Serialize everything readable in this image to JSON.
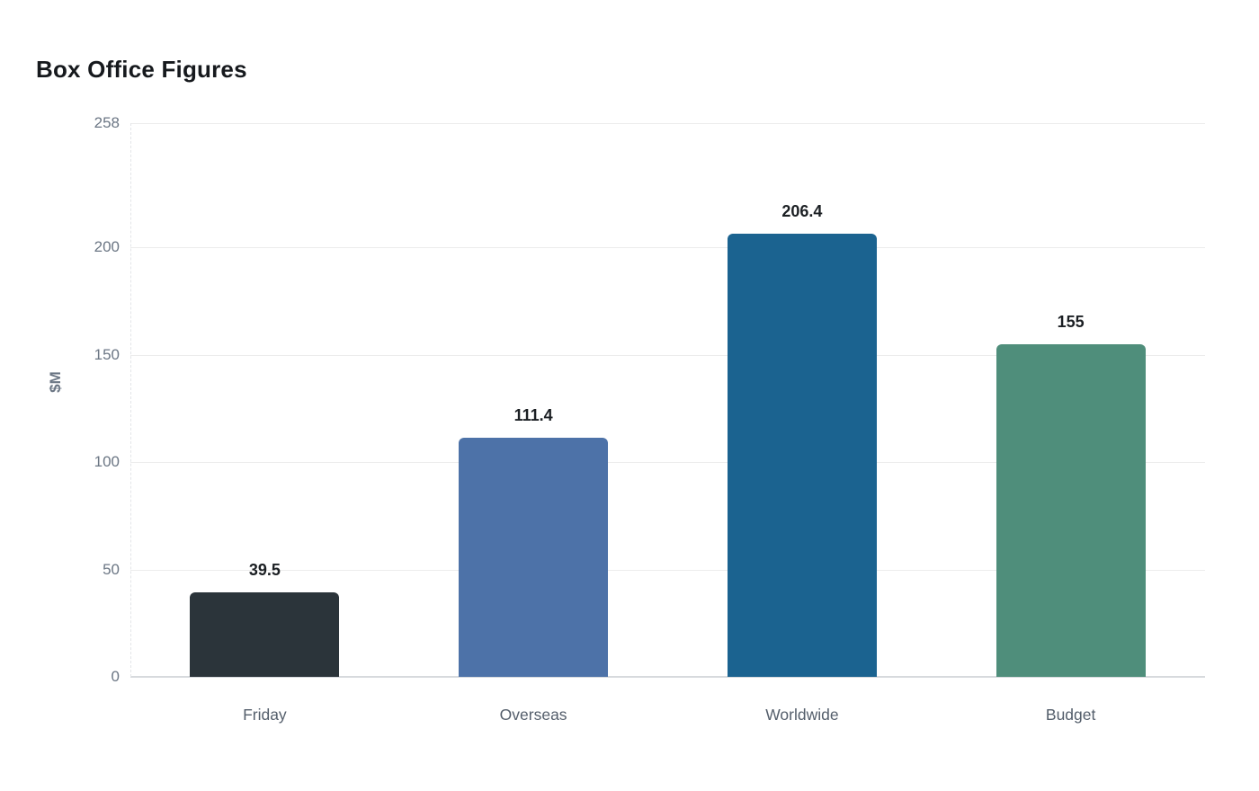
{
  "chart_data": {
    "type": "bar",
    "title": "Box Office Figures",
    "categories": [
      "Friday",
      "Overseas",
      "Worldwide",
      "Budget"
    ],
    "values": [
      39.5,
      111.4,
      206.4,
      155
    ],
    "value_labels": [
      "39.5",
      "111.4",
      "206.4",
      "155"
    ],
    "bar_colors": [
      "#2b343a",
      "#4d72a8",
      "#1b6390",
      "#4f8e7b"
    ],
    "ylabel": "$M",
    "yticks": [
      258,
      200,
      150,
      100,
      50,
      0
    ],
    "ylim": [
      0,
      258
    ],
    "grid": true,
    "legend_position": "none",
    "colors": {
      "background": "#ffffff",
      "title": "#16191d",
      "tick_label": "#6b7684",
      "category_label": "#545e6b",
      "value_label": "#1b1f23",
      "gridline": "#ececec",
      "axis_line": "#d7dadd"
    }
  }
}
